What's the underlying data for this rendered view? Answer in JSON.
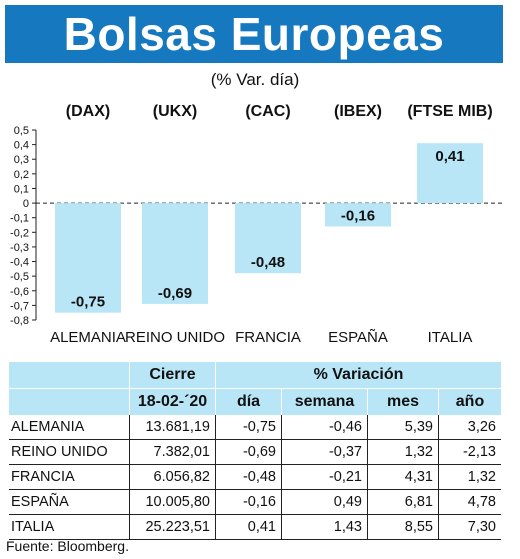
{
  "header": {
    "title": "Bolsas Europeas",
    "subtitle": "(% Var. día)"
  },
  "colors": {
    "header_bg": "#1679bf",
    "bar": "#b9e6f6",
    "table_header": "#b9e6f6"
  },
  "chart_data": {
    "type": "bar",
    "tickers": [
      "(DAX)",
      "(UKX)",
      "(CAC)",
      "(IBEX)",
      "(FTSE MIB)"
    ],
    "categories": [
      "ALEMANIA",
      "REINO UNIDO",
      "FRANCIA",
      "ESPAÑA",
      "ITALIA"
    ],
    "values": [
      -0.75,
      -0.69,
      -0.48,
      -0.16,
      0.41
    ],
    "data_labels": [
      "-0,75",
      "-0,69",
      "-0,48",
      "-0,16",
      "0,41"
    ],
    "ylim": [
      -0.8,
      0.5
    ],
    "yticks": [
      "0,5",
      "0,4",
      "0,3",
      "0,2",
      "0,1",
      "0",
      "-0,1",
      "-0,2",
      "-0,3",
      "-0,4",
      "-0,5",
      "-0,6",
      "-0,7",
      "-0,8"
    ],
    "ytick_values": [
      0.5,
      0.4,
      0.3,
      0.2,
      0.1,
      0,
      -0.1,
      -0.2,
      -0.3,
      -0.4,
      -0.5,
      -0.6,
      -0.7,
      -0.8
    ]
  },
  "table": {
    "group_headers": {
      "cierre": "Cierre",
      "variacion": "% Variación"
    },
    "sub_headers": {
      "date": "18-02-´20",
      "dia": "día",
      "semana": "semana",
      "mes": "mes",
      "ano": "año"
    },
    "rows": [
      {
        "name": "ALEMANIA",
        "cierre": "13.681,19",
        "dia": "-0,75",
        "semana": "-0,46",
        "mes": "5,39",
        "ano": "3,26"
      },
      {
        "name": "REINO UNIDO",
        "cierre": "7.382,01",
        "dia": "-0,69",
        "semana": "-0,37",
        "mes": "1,32",
        "ano": "-2,13"
      },
      {
        "name": "FRANCIA",
        "cierre": "6.056,82",
        "dia": "-0,48",
        "semana": "-0,21",
        "mes": "4,31",
        "ano": "1,32"
      },
      {
        "name": "ESPAÑA",
        "cierre": "10.005,80",
        "dia": "-0,16",
        "semana": "0,49",
        "mes": "6,81",
        "ano": "4,78"
      },
      {
        "name": "ITALIA",
        "cierre": "25.223,51",
        "dia": "0,41",
        "semana": "1,43",
        "mes": "8,55",
        "ano": "7,30"
      }
    ]
  },
  "footer": {
    "source": "Fuente: Bloomberg."
  }
}
